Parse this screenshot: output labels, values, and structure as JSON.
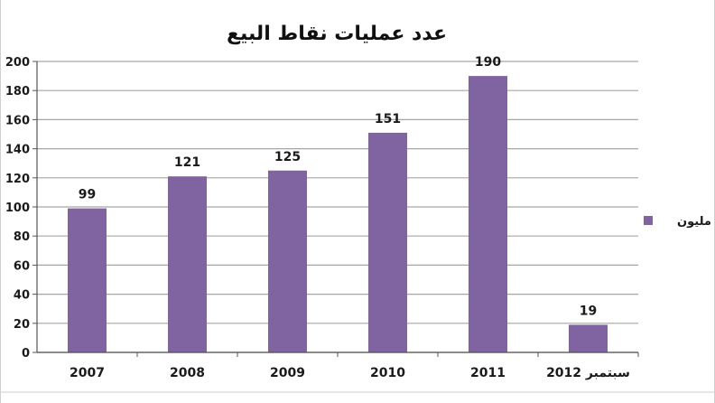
{
  "chart_data": {
    "type": "bar",
    "title": "عدد عمليات نقاط البيع",
    "categories": [
      "2007",
      "2008",
      "2009",
      "2010",
      "2011",
      "سبتمبر 2012"
    ],
    "series": [
      {
        "name": "مليون",
        "values": [
          99,
          121,
          125,
          151,
          190,
          19
        ],
        "color": "#8064a2"
      }
    ],
    "yticks": [
      "0",
      "20",
      "40",
      "60",
      "80",
      "100",
      "120",
      "140",
      "160",
      "180",
      "200"
    ],
    "ylim": [
      0,
      200
    ],
    "grid": true,
    "legend": "right"
  }
}
